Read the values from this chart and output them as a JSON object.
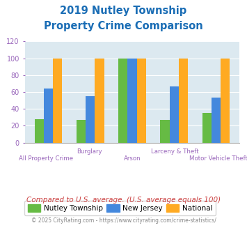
{
  "title_line1": "2019 Nutley Township",
  "title_line2": "Property Crime Comparison",
  "title_color": "#1a6db5",
  "categories": [
    "All Property Crime",
    "Burglary",
    "Arson",
    "Larceny & Theft",
    "Motor Vehicle Theft"
  ],
  "nutley": [
    28,
    27,
    100,
    27,
    35
  ],
  "newjersey": [
    64,
    55,
    100,
    67,
    53
  ],
  "national": [
    100,
    100,
    100,
    100,
    100
  ],
  "nutley_color": "#66bb44",
  "newjersey_color": "#4488dd",
  "national_color": "#ffaa22",
  "ylim": [
    0,
    120
  ],
  "yticks": [
    0,
    20,
    40,
    60,
    80,
    100,
    120
  ],
  "plot_bg_color": "#dce9f0",
  "legend_labels": [
    "Nutley Township",
    "New Jersey",
    "National"
  ],
  "footnote1": "Compared to U.S. average. (U.S. average equals 100)",
  "footnote2": "© 2025 CityRating.com - https://www.cityrating.com/crime-statistics/",
  "footnote1_color": "#cc4444",
  "footnote2_color": "#888888",
  "xlabel_color": "#9966bb",
  "tick_color": "#9966bb",
  "grid_color": "#ffffff"
}
